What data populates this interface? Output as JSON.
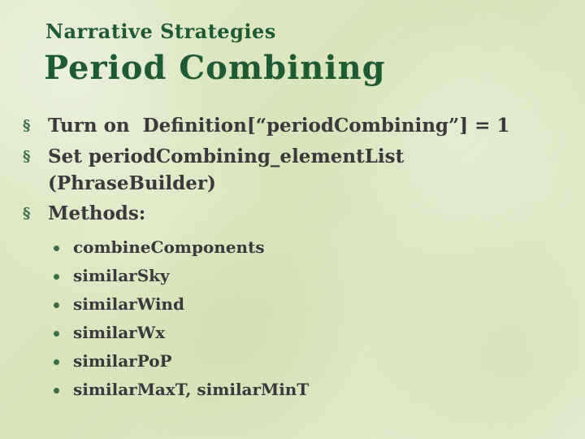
{
  "slide": {
    "subtitle": "Narrative Strategies",
    "title": "Period Combining",
    "bullets": [
      {
        "marker": "§",
        "text": "Turn on  Definition[“periodCombining”] = 1"
      },
      {
        "marker": "§",
        "text": "Set periodCombining_elementList (PhraseBuilder)"
      },
      {
        "marker": "§",
        "text": "Methods:"
      }
    ],
    "methods": [
      "combineComponents",
      "similarSky",
      "similarWind",
      "similarWx",
      "similarPoP",
      "similarMaxT, similarMinT"
    ],
    "colors": {
      "title": "#1e5a32",
      "text": "#3a3a3a",
      "bullet": "#3b6e48",
      "background": "#dde8c4"
    }
  }
}
